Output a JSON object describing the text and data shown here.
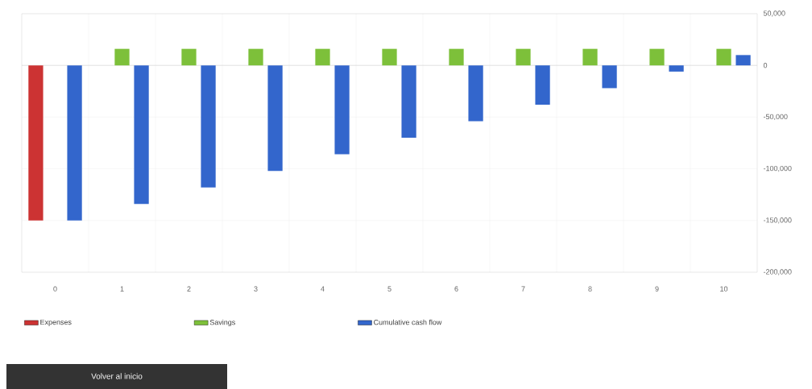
{
  "chart_data": {
    "type": "bar",
    "categories": [
      "0",
      "1",
      "2",
      "3",
      "4",
      "5",
      "6",
      "7",
      "8",
      "9",
      "10"
    ],
    "series": [
      {
        "name": "Expenses",
        "color": "#cc3333",
        "values": [
          -150000,
          null,
          null,
          null,
          null,
          null,
          null,
          null,
          null,
          null,
          null
        ]
      },
      {
        "name": "Savings",
        "color": "#7dc03a",
        "values": [
          null,
          16000,
          16000,
          16000,
          16000,
          16000,
          16000,
          16000,
          16000,
          16000,
          16000
        ]
      },
      {
        "name": "Cumulative cash flow",
        "color": "#3366cc",
        "values": [
          -150000,
          -134000,
          -118000,
          -102000,
          -86000,
          -70000,
          -54000,
          -38000,
          -22000,
          -6000,
          10000
        ]
      }
    ],
    "ylim": [
      -200000,
      50000
    ],
    "yticks": [
      {
        "value": 50000,
        "label": "50,000"
      },
      0,
      {
        "value": -50000,
        "label": "-50,000"
      },
      {
        "value": -100000,
        "label": "-100,000"
      },
      {
        "value": -150000,
        "label": "-150,000"
      },
      {
        "value": -200000,
        "label": "-200,000"
      }
    ],
    "grid": true,
    "legend": "bottom",
    "annotations": [
      "Volver al inicio"
    ]
  }
}
